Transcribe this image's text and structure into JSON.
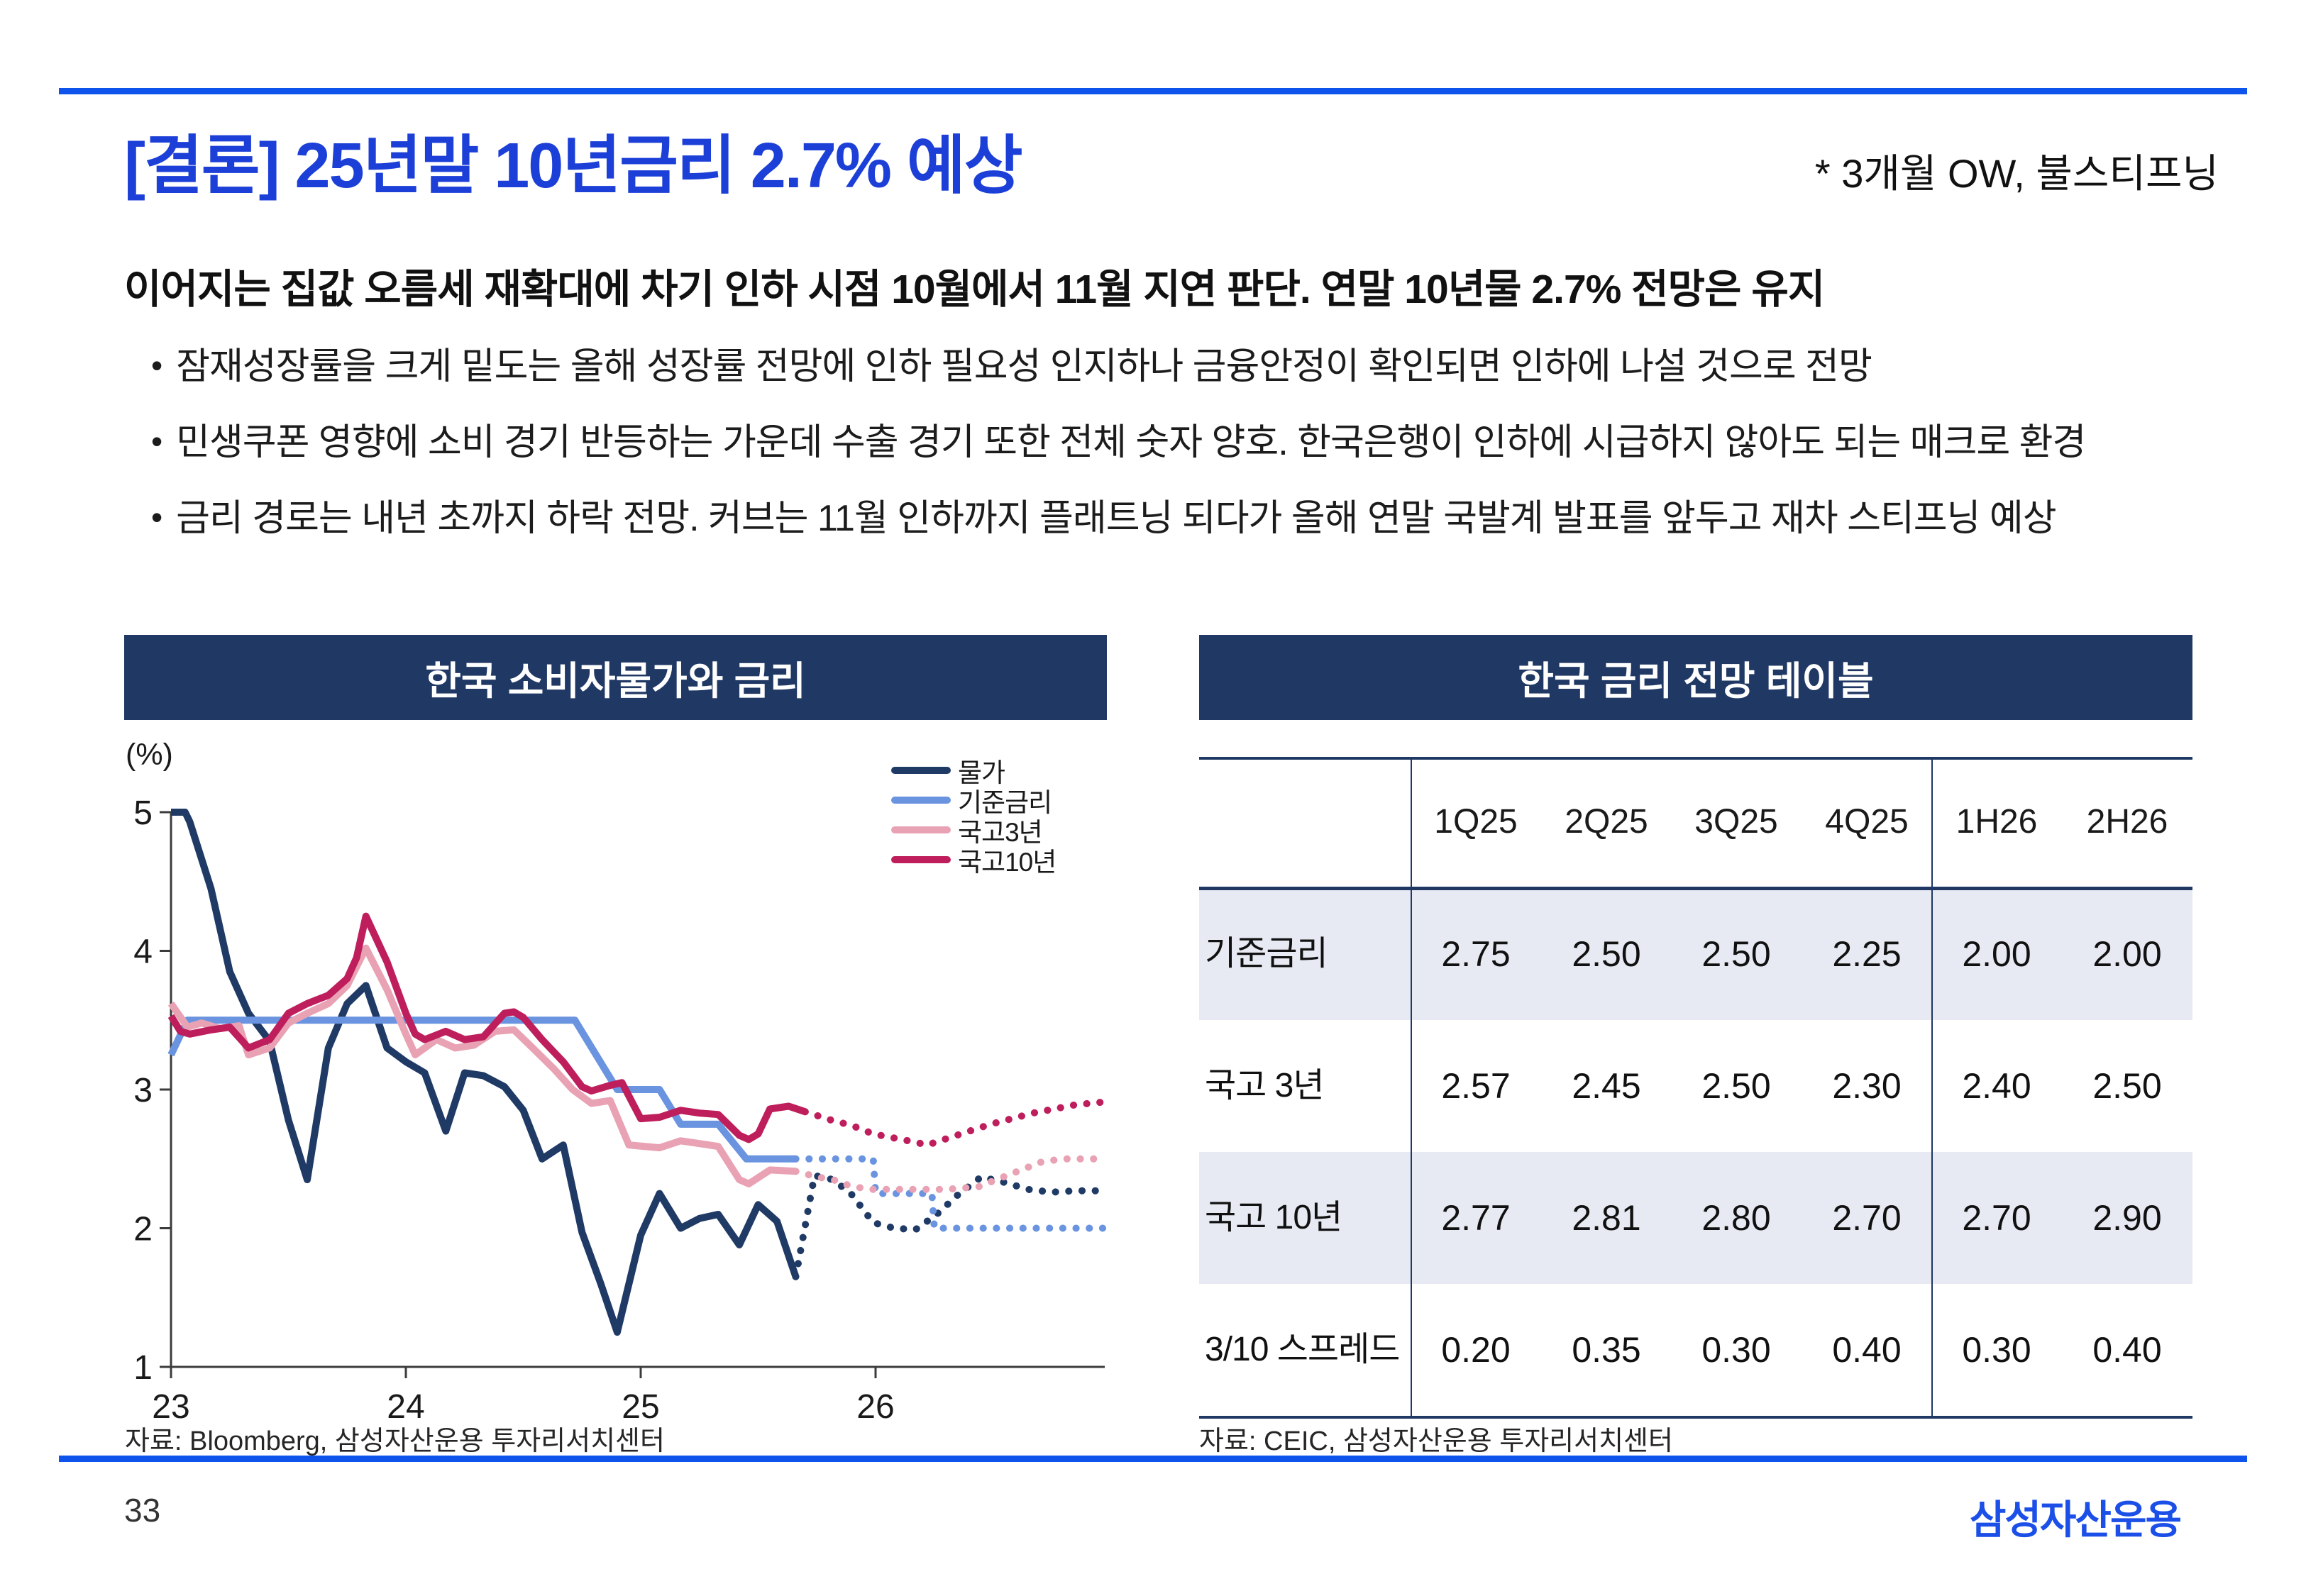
{
  "header": {
    "title": "[결론] 25년말 10년금리 2.7% 예상",
    "note": "* 3개월 OW, 불스티프닝"
  },
  "lead": "이어지는 집값 오름세 재확대에 차기 인하 시점 10월에서 11월 지연 판단. 연말 10년물 2.7% 전망은 유지",
  "bullet_marker": "•",
  "bullets": [
    "잠재성장률을 크게 밑도는 올해 성장률 전망에 인하 필요성 인지하나 금융안정이 확인되면 인하에 나설 것으로 전망",
    "민생쿠폰 영향에 소비 경기 반등하는 가운데 수출 경기 또한 전체 숫자 양호. 한국은행이 인하에 시급하지 않아도 되는 매크로 환경",
    "금리 경로는 내년 초까지 하락 전망. 커브는 11월 인하까지 플래트닝 되다가 올해 연말 국발계 발표를 앞두고 재차 스티프닝 예상"
  ],
  "chart_panel": {
    "title": "한국 소비자물가와 금리",
    "source": "자료: Bloomberg, 삼성자산운용 투자리서치센터"
  },
  "table_panel": {
    "title": "한국 금리 전망 테이블",
    "source": "자료: CEIC, 삼성자산운용 투자리서치센터",
    "columns": [
      "1Q25",
      "2Q25",
      "3Q25",
      "4Q25",
      "1H26",
      "2H26"
    ],
    "rows": [
      {
        "label": "기준금리",
        "values": [
          "2.75",
          "2.50",
          "2.50",
          "2.25",
          "2.00",
          "2.00"
        ],
        "shaded": true
      },
      {
        "label": "국고 3년",
        "values": [
          "2.57",
          "2.45",
          "2.50",
          "2.30",
          "2.40",
          "2.50"
        ],
        "shaded": false
      },
      {
        "label": "국고 10년",
        "values": [
          "2.77",
          "2.81",
          "2.80",
          "2.70",
          "2.70",
          "2.90"
        ],
        "shaded": true
      },
      {
        "label": "3/10 스프레드",
        "values": [
          "0.20",
          "0.35",
          "0.30",
          "0.40",
          "0.30",
          "0.40"
        ],
        "shaded": false
      }
    ]
  },
  "chart_data": {
    "type": "line",
    "title": "한국 소비자물가와 금리",
    "unit_label": "(%)",
    "x_ticks": [
      23,
      24,
      25,
      26
    ],
    "y_ticks": [
      5,
      4,
      3,
      2,
      1
    ],
    "x_range": [
      23,
      26.97
    ],
    "y_range": [
      1,
      5
    ],
    "legend_position": "top-right",
    "series": [
      {
        "name": "물가",
        "color": "#203A66",
        "solid": [
          [
            23.0,
            5.0
          ],
          [
            23.06,
            5.0
          ],
          [
            23.08,
            4.93
          ],
          [
            23.17,
            4.45
          ],
          [
            23.25,
            3.85
          ],
          [
            23.33,
            3.55
          ],
          [
            23.42,
            3.35
          ],
          [
            23.5,
            2.78
          ],
          [
            23.58,
            2.35
          ],
          [
            23.67,
            3.3
          ],
          [
            23.75,
            3.62
          ],
          [
            23.83,
            3.75
          ],
          [
            23.92,
            3.3
          ],
          [
            24.0,
            3.2
          ],
          [
            24.08,
            3.12
          ],
          [
            24.17,
            2.7
          ],
          [
            24.25,
            3.12
          ],
          [
            24.33,
            3.1
          ],
          [
            24.42,
            3.02
          ],
          [
            24.5,
            2.85
          ],
          [
            24.58,
            2.5
          ],
          [
            24.67,
            2.6
          ],
          [
            24.75,
            1.97
          ],
          [
            24.83,
            1.6
          ],
          [
            24.9,
            1.25
          ],
          [
            25.0,
            1.95
          ],
          [
            25.08,
            2.25
          ],
          [
            25.17,
            2.0
          ],
          [
            25.25,
            2.07
          ],
          [
            25.33,
            2.1
          ],
          [
            25.42,
            1.88
          ],
          [
            25.5,
            2.17
          ],
          [
            25.58,
            2.05
          ],
          [
            25.66,
            1.65
          ]
        ],
        "dotted": [
          [
            25.66,
            1.65
          ],
          [
            25.74,
            2.38
          ],
          [
            25.82,
            2.35
          ],
          [
            25.9,
            2.24
          ],
          [
            25.99,
            2.04
          ],
          [
            26.08,
            2.0
          ],
          [
            26.17,
            1.99
          ],
          [
            26.26,
            2.1
          ],
          [
            26.35,
            2.24
          ],
          [
            26.45,
            2.37
          ],
          [
            26.55,
            2.33
          ],
          [
            26.65,
            2.28
          ],
          [
            26.75,
            2.26
          ],
          [
            26.85,
            2.27
          ],
          [
            26.97,
            2.27
          ]
        ]
      },
      {
        "name": "기준금리",
        "color": "#6A94E0",
        "solid": [
          [
            23.0,
            3.25
          ],
          [
            23.07,
            3.5
          ],
          [
            24.72,
            3.5
          ],
          [
            24.9,
            3.0
          ],
          [
            25.08,
            3.0
          ],
          [
            25.17,
            2.75
          ],
          [
            25.33,
            2.75
          ],
          [
            25.45,
            2.5
          ],
          [
            25.66,
            2.5
          ]
        ],
        "dotted": [
          [
            25.66,
            2.5
          ],
          [
            25.99,
            2.5
          ],
          [
            26.0,
            2.25
          ],
          [
            26.24,
            2.25
          ],
          [
            26.25,
            2.0
          ],
          [
            26.97,
            2.0
          ]
        ]
      },
      {
        "name": "국고3년",
        "color": "#E9A2B4",
        "solid": [
          [
            23.0,
            3.62
          ],
          [
            23.07,
            3.45
          ],
          [
            23.13,
            3.48
          ],
          [
            23.21,
            3.44
          ],
          [
            23.29,
            3.46
          ],
          [
            23.33,
            3.25
          ],
          [
            23.42,
            3.3
          ],
          [
            23.5,
            3.48
          ],
          [
            23.58,
            3.55
          ],
          [
            23.67,
            3.62
          ],
          [
            23.75,
            3.75
          ],
          [
            23.83,
            4.02
          ],
          [
            23.92,
            3.72
          ],
          [
            24.0,
            3.4
          ],
          [
            24.04,
            3.25
          ],
          [
            24.13,
            3.36
          ],
          [
            24.21,
            3.3
          ],
          [
            24.29,
            3.32
          ],
          [
            24.38,
            3.42
          ],
          [
            24.46,
            3.43
          ],
          [
            24.54,
            3.3
          ],
          [
            24.63,
            3.15
          ],
          [
            24.71,
            3.0
          ],
          [
            24.79,
            2.9
          ],
          [
            24.87,
            2.92
          ],
          [
            24.95,
            2.6
          ],
          [
            25.08,
            2.58
          ],
          [
            25.17,
            2.63
          ],
          [
            25.25,
            2.61
          ],
          [
            25.33,
            2.59
          ],
          [
            25.42,
            2.35
          ],
          [
            25.46,
            2.32
          ],
          [
            25.55,
            2.42
          ],
          [
            25.66,
            2.41
          ]
        ],
        "dotted": [
          [
            25.66,
            2.41
          ],
          [
            25.75,
            2.37
          ],
          [
            25.82,
            2.35
          ],
          [
            25.9,
            2.3
          ],
          [
            25.99,
            2.28
          ],
          [
            26.3,
            2.28
          ],
          [
            26.44,
            2.3
          ],
          [
            26.53,
            2.36
          ],
          [
            26.62,
            2.42
          ],
          [
            26.71,
            2.48
          ],
          [
            26.8,
            2.5
          ],
          [
            26.97,
            2.5
          ]
        ]
      },
      {
        "name": "국고10년",
        "color": "#BE1E5B",
        "solid": [
          [
            23.0,
            3.53
          ],
          [
            23.04,
            3.42
          ],
          [
            23.08,
            3.4
          ],
          [
            23.17,
            3.43
          ],
          [
            23.25,
            3.45
          ],
          [
            23.33,
            3.3
          ],
          [
            23.42,
            3.36
          ],
          [
            23.5,
            3.55
          ],
          [
            23.58,
            3.62
          ],
          [
            23.67,
            3.68
          ],
          [
            23.75,
            3.8
          ],
          [
            23.79,
            3.95
          ],
          [
            23.83,
            4.25
          ],
          [
            23.92,
            3.92
          ],
          [
            24.0,
            3.55
          ],
          [
            24.04,
            3.4
          ],
          [
            24.08,
            3.36
          ],
          [
            24.17,
            3.42
          ],
          [
            24.25,
            3.36
          ],
          [
            24.33,
            3.38
          ],
          [
            24.42,
            3.55
          ],
          [
            24.46,
            3.56
          ],
          [
            24.5,
            3.52
          ],
          [
            24.58,
            3.36
          ],
          [
            24.67,
            3.2
          ],
          [
            24.75,
            3.02
          ],
          [
            24.79,
            2.99
          ],
          [
            24.87,
            3.03
          ],
          [
            24.92,
            3.05
          ],
          [
            25.0,
            2.79
          ],
          [
            25.08,
            2.8
          ],
          [
            25.17,
            2.85
          ],
          [
            25.25,
            2.83
          ],
          [
            25.33,
            2.82
          ],
          [
            25.42,
            2.67
          ],
          [
            25.46,
            2.64
          ],
          [
            25.5,
            2.68
          ],
          [
            25.55,
            2.86
          ],
          [
            25.63,
            2.88
          ],
          [
            25.7,
            2.84
          ]
        ],
        "dotted": [
          [
            25.7,
            2.84
          ],
          [
            25.81,
            2.78
          ],
          [
            25.9,
            2.74
          ],
          [
            25.99,
            2.68
          ],
          [
            26.08,
            2.65
          ],
          [
            26.17,
            2.62
          ],
          [
            26.22,
            2.6
          ],
          [
            26.31,
            2.65
          ],
          [
            26.4,
            2.7
          ],
          [
            26.49,
            2.75
          ],
          [
            26.58,
            2.79
          ],
          [
            26.67,
            2.83
          ],
          [
            26.76,
            2.86
          ],
          [
            26.85,
            2.89
          ],
          [
            26.97,
            2.91
          ]
        ]
      }
    ]
  },
  "footer": {
    "page_number": "33",
    "logo": "삼성자산운용"
  },
  "colors": {
    "accent_rule_blue": "#0E53EC",
    "title_blue": "#1C3FD8",
    "panel_navy": "#203864",
    "table_band_lavender": "#E8EAF3",
    "logo_blue": "#1B4FE8"
  }
}
